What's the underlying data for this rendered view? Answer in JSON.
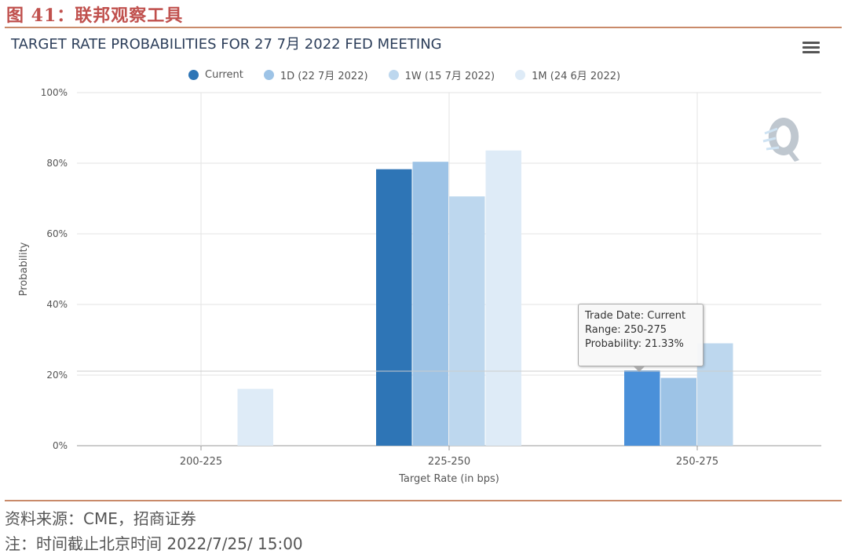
{
  "figure_title": "图 41：联邦观察工具",
  "chart_title": "TARGET RATE PROBABILITIES FOR 27 7月 2022 FED MEETING",
  "menu_icon": "hamburger-menu-icon",
  "source_text": "资料来源：CME，招商证券",
  "note_text": "注：时间截止北京时间 2022/7/25/ 15:00",
  "tooltip": {
    "line1": "Trade Date: Current",
    "line2": "Range: 250-275",
    "line3": "Probability: 21.33%"
  },
  "chart_data": {
    "type": "bar",
    "title": "TARGET RATE PROBABILITIES FOR 27 7月 2022 FED MEETING",
    "xlabel": "Target Rate (in bps)",
    "ylabel": "Probability",
    "categories": [
      "200-225",
      "225-250",
      "250-275"
    ],
    "ylim": [
      0,
      100
    ],
    "yticks": [
      "0%",
      "20%",
      "40%",
      "60%",
      "80%",
      "100%"
    ],
    "grid": true,
    "legend_position": "top-center",
    "series": [
      {
        "name": "Current",
        "color": "#2e75b6",
        "values": [
          0,
          78.3,
          21.33
        ]
      },
      {
        "name": "1D (22 7月 2022)",
        "color": "#9dc3e6",
        "values": [
          0,
          80.4,
          19.2
        ]
      },
      {
        "name": "1W (15 7月 2022)",
        "color": "#bdd7ee",
        "values": [
          0,
          70.6,
          29.0
        ]
      },
      {
        "name": "1M (24 6月 2022)",
        "color": "#deebf7",
        "values": [
          16.1,
          83.6,
          0
        ]
      }
    ],
    "highlight_color": "#4a90d9"
  }
}
